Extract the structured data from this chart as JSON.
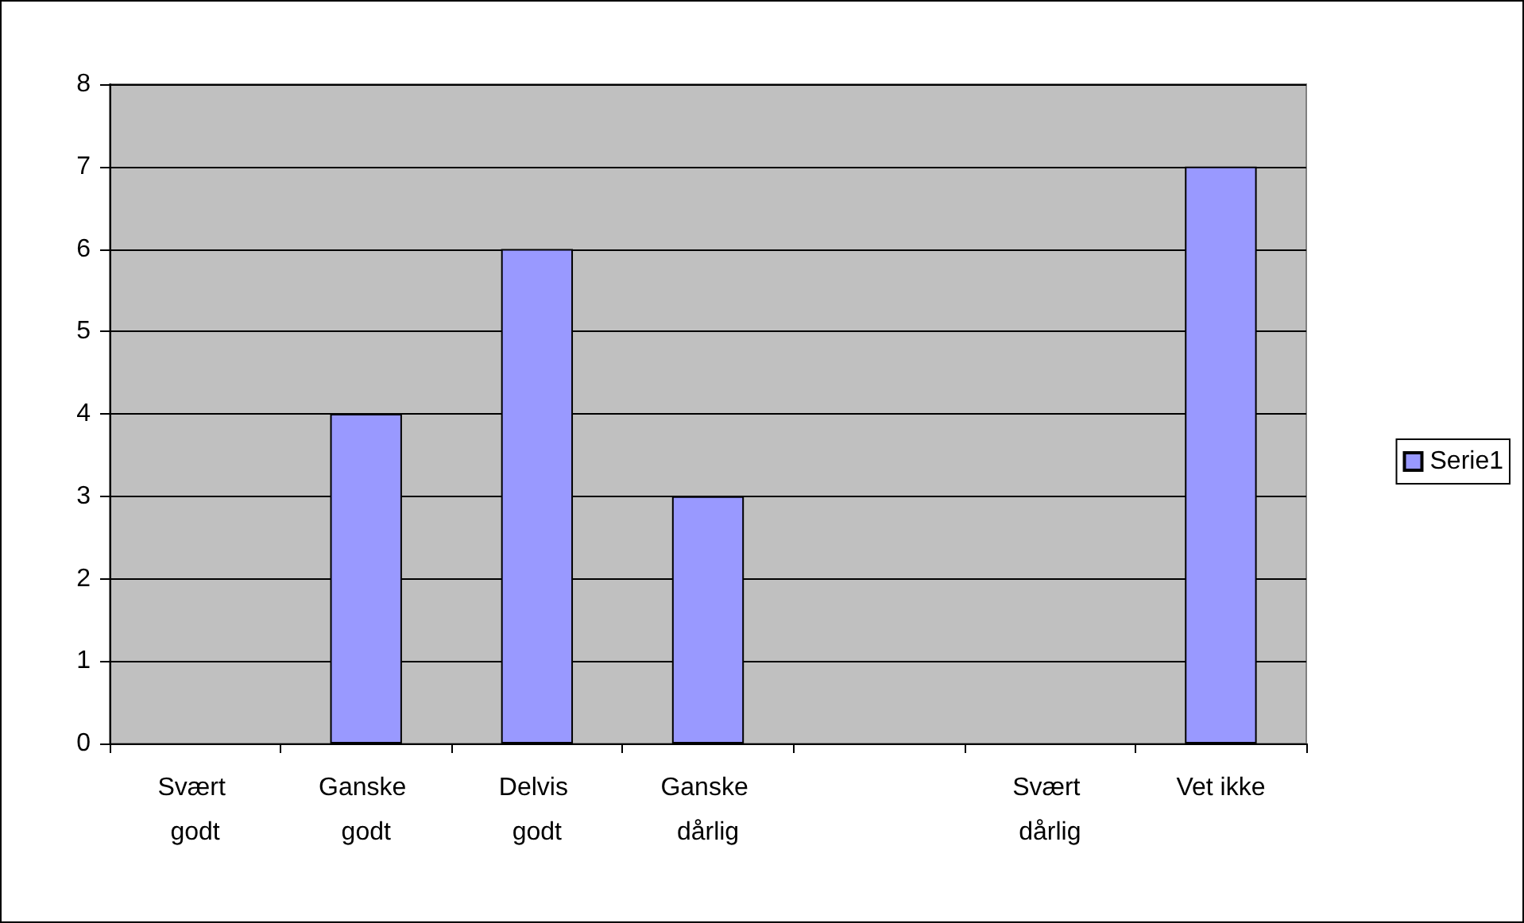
{
  "chart_data": {
    "type": "bar",
    "categories": [
      "Svært godt",
      "Ganske godt",
      "Delvis godt",
      "Ganske dårlig",
      null,
      "Svært dårlig",
      "Vet ikke"
    ],
    "series": [
      {
        "name": "Serie1",
        "color": "#9999ff",
        "values": [
          0,
          4,
          6,
          3,
          0,
          0,
          7
        ]
      }
    ],
    "ylim": [
      0,
      8
    ],
    "yticks": [
      0,
      1,
      2,
      3,
      4,
      5,
      6,
      7,
      8
    ],
    "grid": "y",
    "legend": "right"
  }
}
